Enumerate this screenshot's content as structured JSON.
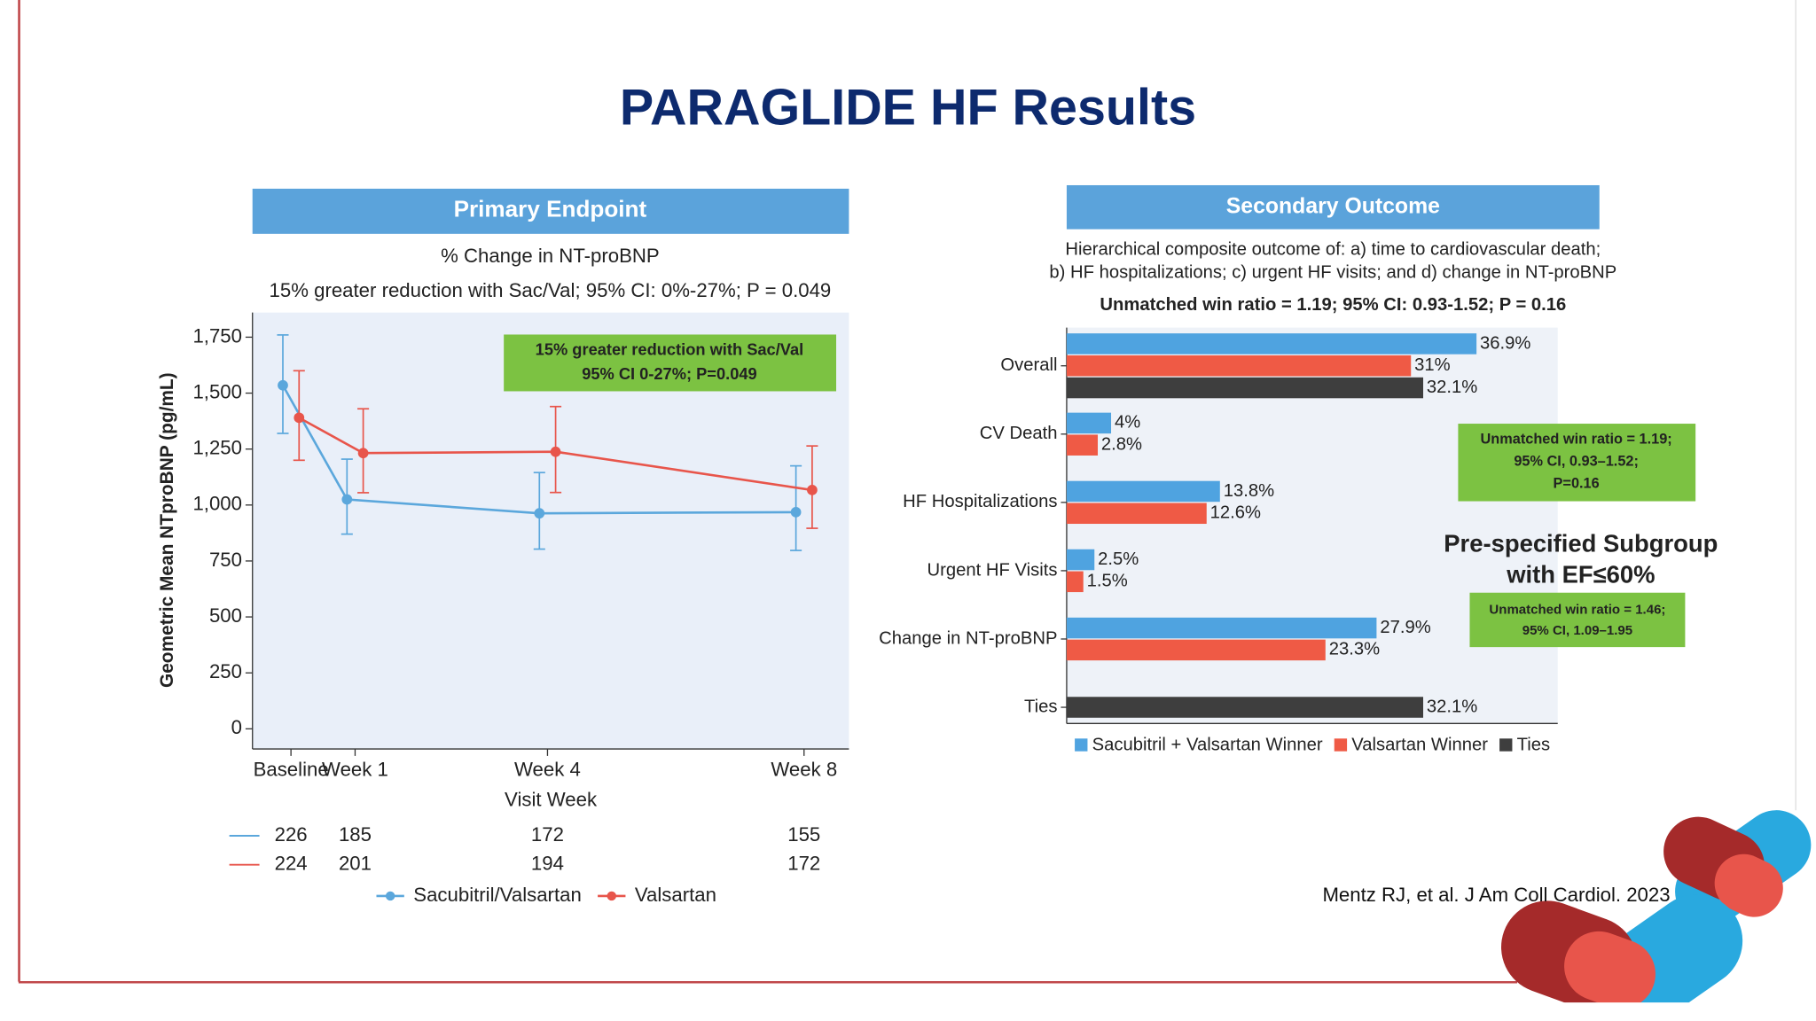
{
  "title": "PARAGLIDE HF Results",
  "citation": "Mentz RJ, et al. J Am Coll Cardiol. 2023",
  "chart_data": [
    {
      "type": "line",
      "header": "Primary Endpoint",
      "subtitle": "% Change in NT-proBNP",
      "note": "15% greater reduction with Sac/Val; 95% CI: 0%-27%; P = 0.049",
      "annotation": [
        "15% greater reduction with Sac/Val",
        "95% CI 0-27%; P=0.049"
      ],
      "ylabel": "Geometric Mean NTproBNP (pg/mL)",
      "xlabel": "Visit Week",
      "x": [
        0,
        1,
        4,
        8
      ],
      "xlim": [
        -0.6,
        8.7
      ],
      "xticks": [
        {
          "value": 0,
          "label": "Baseline"
        },
        {
          "value": 1,
          "label": "Week 1"
        },
        {
          "value": 4,
          "label": "Week 4"
        },
        {
          "value": 8,
          "label": "Week 8"
        }
      ],
      "ylim": [
        -90,
        1860
      ],
      "yticks": [
        0,
        250,
        500,
        750,
        {
          "value": 1000,
          "label": "1,000"
        },
        {
          "value": 1250,
          "label": "1,250"
        },
        {
          "value": 1500,
          "label": "1,500"
        },
        {
          "value": 1750,
          "label": "1,750"
        }
      ],
      "series": [
        {
          "name": "Sacubitril/Valsartan",
          "color": "#5ba7dc",
          "values": [
            1535,
            1025,
            963,
            968
          ],
          "lower": [
            1320,
            870,
            803,
            797
          ],
          "upper": [
            1760,
            1205,
            1145,
            1175
          ],
          "at_risk": [
            226,
            185,
            172,
            155
          ]
        },
        {
          "name": "Valsartan",
          "color": "#e8554b",
          "values": [
            1390,
            1232,
            1238,
            1067
          ],
          "lower": [
            1200,
            1055,
            1056,
            896
          ],
          "upper": [
            1600,
            1430,
            1440,
            1264
          ],
          "at_risk": [
            224,
            201,
            194,
            172
          ]
        }
      ]
    },
    {
      "type": "bar",
      "orientation": "horizontal",
      "header": "Secondary Outcome",
      "description": [
        "Hierarchical composite outcome of: a) time to cardiovascular death;",
        "b) HF hospitalizations; c) urgent HF visits; and d) change in NT-proBNP"
      ],
      "note": "Unmatched win ratio = 1.19;  95% CI: 0.93-1.52; P = 0.16",
      "annotation": [
        "Unmatched win ratio = 1.19;",
        "95% CI, 0.93–1.52;",
        "P=0.16"
      ],
      "subgroup_title": [
        "Pre-specified Subgroup",
        "with EF≤60%"
      ],
      "subgroup_annotation": [
        "Unmatched win ratio = 1.46;",
        "95% CI, 1.09–1.95"
      ],
      "categories": [
        "Overall",
        "CV Death",
        "HF Hospitalizations",
        "Urgent HF Visits",
        "Change in NT-proBNP",
        "Ties"
      ],
      "series": [
        {
          "name": "Sacubitril + Valsartan Winner",
          "color": "#4fa3e0",
          "values": [
            36.9,
            4,
            13.8,
            2.5,
            27.9,
            null
          ],
          "value_labels": [
            "36.9%",
            "4%",
            "13.8%",
            "2.5%",
            "27.9%",
            null
          ]
        },
        {
          "name": "Valsartan Winner",
          "color": "#ef5a45",
          "values": [
            31,
            2.8,
            12.6,
            1.5,
            23.3,
            null
          ],
          "value_labels": [
            "31%",
            "2.8%",
            "12.6%",
            "1.5%",
            "23.3%",
            null
          ]
        },
        {
          "name": "Ties",
          "color": "#3e3e3e",
          "values": [
            32.1,
            null,
            null,
            null,
            null,
            32.1
          ],
          "value_labels": [
            "32.1%",
            null,
            null,
            null,
            null,
            "32.1%"
          ]
        }
      ]
    }
  ]
}
